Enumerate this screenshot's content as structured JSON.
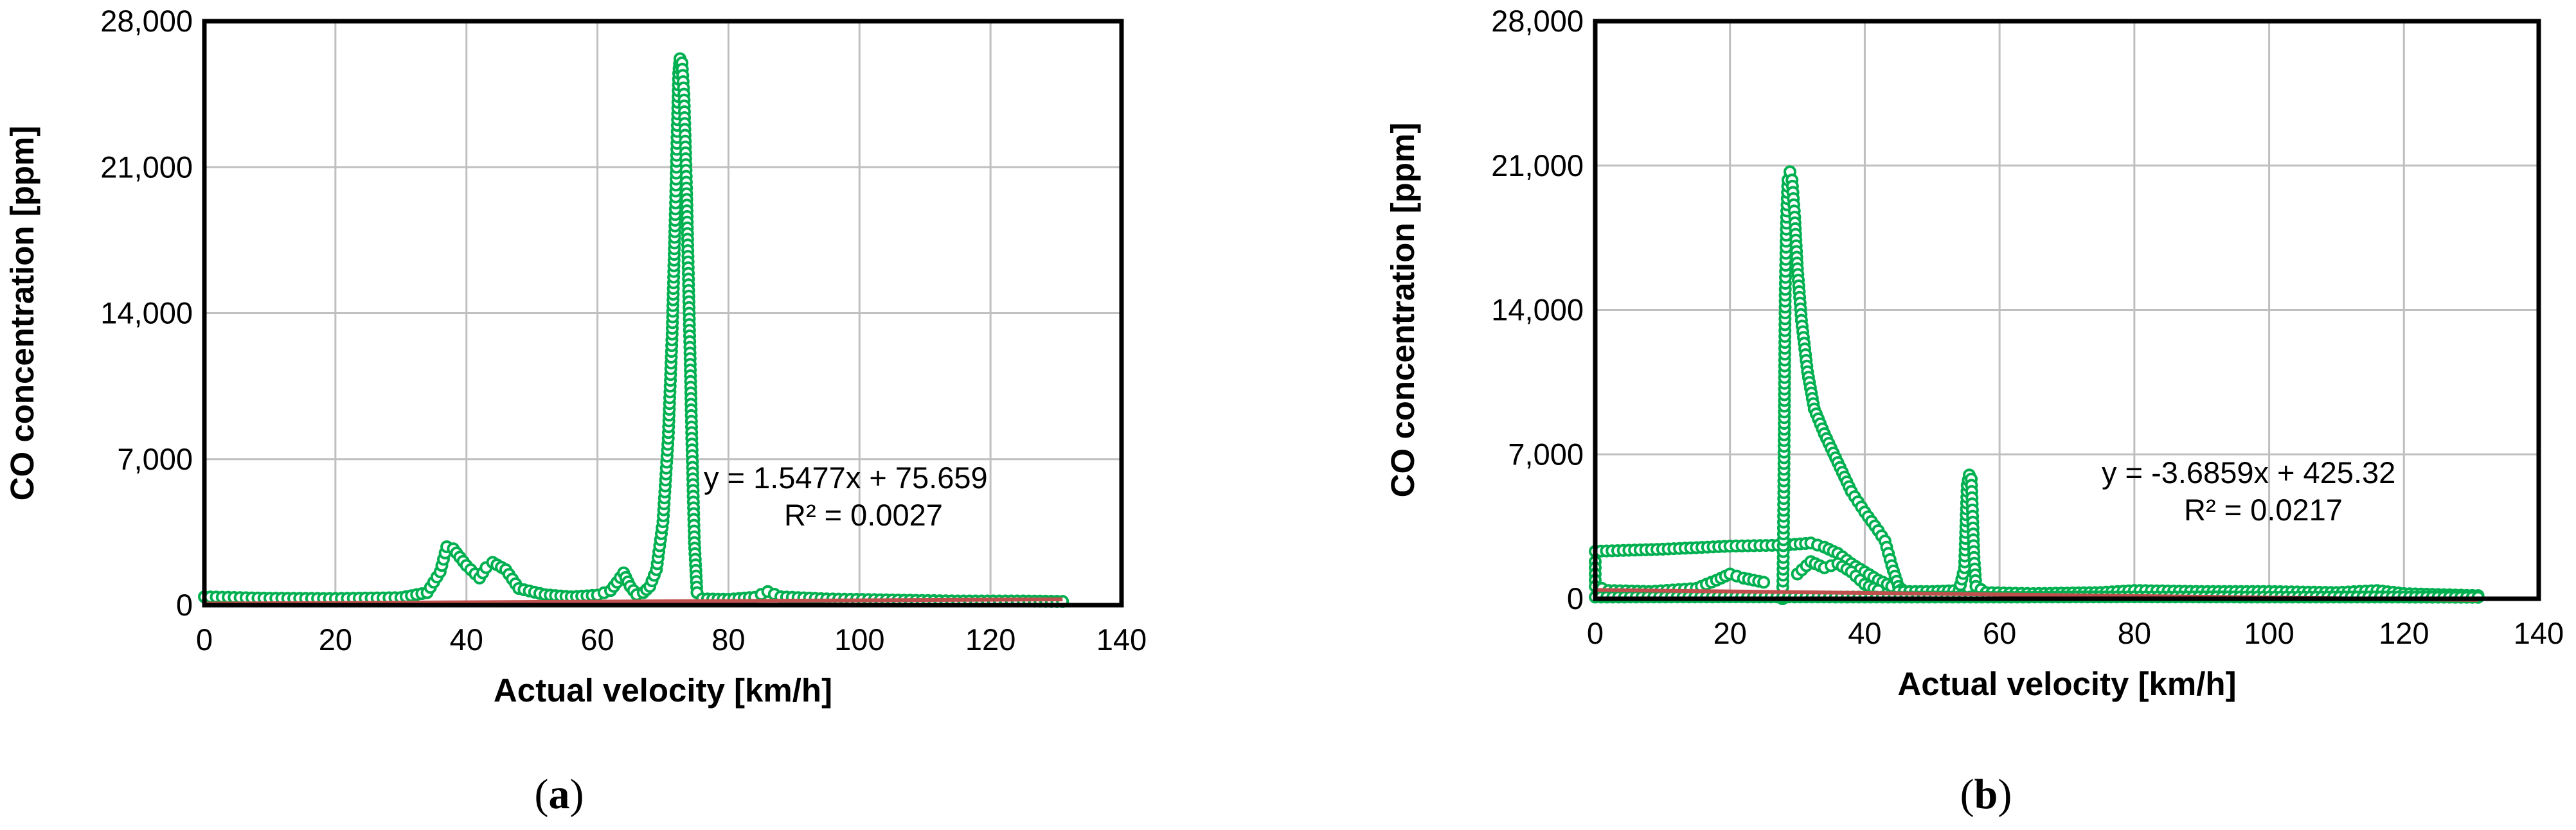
{
  "chart_data": [
    {
      "type": "scatter",
      "panel_label": "a",
      "xlabel": "Actual velocity [km/h]",
      "ylabel": "CO concentration [ppm]",
      "xlim": [
        0,
        140
      ],
      "ylim": [
        0,
        28000
      ],
      "xticks": [
        0,
        20,
        40,
        60,
        80,
        100,
        120,
        140
      ],
      "yticks": [
        0,
        7000,
        14000,
        21000,
        28000
      ],
      "xtick_labels": [
        "0",
        "20",
        "40",
        "60",
        "80",
        "100",
        "120",
        "140"
      ],
      "ytick_labels": [
        "0",
        "7,000",
        "14,000",
        "21,000",
        "28,000"
      ],
      "grid": true,
      "marker_color": "#00B050",
      "trend_color": "#C0504D",
      "trendline": {
        "slope": 1.5477,
        "intercept": 75.659,
        "x_range": [
          0,
          131
        ]
      },
      "equation": "y = 1.5477x + 75.659",
      "r_squared": "R² = 0.0027",
      "curves": [
        [
          [
            0,
            400
          ],
          [
            10,
            330
          ],
          [
            20,
            320
          ],
          [
            30,
            360
          ],
          [
            34,
            600
          ],
          [
            36,
            1600
          ],
          [
            37,
            2800
          ],
          [
            38,
            2700
          ],
          [
            40,
            1900
          ],
          [
            42,
            1300
          ],
          [
            43,
            1800
          ],
          [
            44,
            2050
          ],
          [
            46,
            1700
          ],
          [
            48,
            800
          ],
          [
            52,
            500
          ],
          [
            56,
            400
          ],
          [
            60,
            480
          ],
          [
            62,
            700
          ],
          [
            63,
            1100
          ],
          [
            64,
            1550
          ],
          [
            65,
            900
          ],
          [
            66,
            500
          ],
          [
            67,
            600
          ],
          [
            68,
            900
          ],
          [
            69,
            1700
          ],
          [
            70,
            4000
          ],
          [
            70.8,
            8000
          ],
          [
            71.4,
            13000
          ],
          [
            71.9,
            19000
          ],
          [
            72.2,
            23000
          ],
          [
            72.4,
            25500
          ],
          [
            72.6,
            26200
          ],
          [
            72.9,
            26000
          ],
          [
            73.2,
            24500
          ],
          [
            73.6,
            20000
          ],
          [
            74,
            14000
          ],
          [
            74.4,
            8000
          ],
          [
            74.8,
            3000
          ],
          [
            75.2,
            600
          ],
          [
            76,
            300
          ],
          [
            80,
            280
          ],
          [
            84,
            380
          ],
          [
            86,
            650
          ],
          [
            88,
            400
          ],
          [
            95,
            300
          ],
          [
            105,
            250
          ],
          [
            115,
            200
          ],
          [
            125,
            200
          ],
          [
            131,
            180
          ]
        ]
      ]
    },
    {
      "type": "scatter",
      "panel_label": "b",
      "xlabel": "Actual velocity [km/h]",
      "ylabel": "CO concentration [ppm]",
      "xlim": [
        0,
        140
      ],
      "ylim": [
        0,
        28000
      ],
      "xticks": [
        0,
        20,
        40,
        60,
        80,
        100,
        120,
        140
      ],
      "yticks": [
        0,
        7000,
        14000,
        21000,
        28000
      ],
      "xtick_labels": [
        "0",
        "20",
        "40",
        "60",
        "80",
        "100",
        "120",
        "140"
      ],
      "ytick_labels": [
        "0",
        "7,000",
        "14,000",
        "21,000",
        "28,000"
      ],
      "grid": true,
      "marker_color": "#00B050",
      "trend_color": "#C0504D",
      "trendline": {
        "slope": -3.6859,
        "intercept": 425.32,
        "x_range": [
          0,
          131
        ]
      },
      "equation": "y = -3.6859x + 425.32",
      "r_squared": "R² = 0.0217",
      "curves": [
        [
          [
            0,
            1800
          ],
          [
            0,
            600
          ],
          [
            2,
            400
          ],
          [
            8,
            350
          ],
          [
            15,
            500
          ],
          [
            18,
            900
          ],
          [
            20,
            1200
          ],
          [
            22,
            1000
          ],
          [
            25,
            800
          ]
        ],
        [
          [
            0,
            2300
          ],
          [
            10,
            2400
          ],
          [
            20,
            2550
          ],
          [
            28,
            2600
          ],
          [
            32,
            2700
          ],
          [
            34,
            2500
          ],
          [
            36,
            2200
          ],
          [
            38,
            1700
          ],
          [
            40,
            1300
          ],
          [
            42,
            900
          ],
          [
            44,
            600
          ]
        ],
        [
          [
            27.8,
            0
          ],
          [
            27.9,
            2000
          ],
          [
            28,
            6000
          ],
          [
            28.1,
            11000
          ],
          [
            28.2,
            15000
          ],
          [
            28.4,
            18500
          ],
          [
            28.6,
            20300
          ],
          [
            28.9,
            20700
          ],
          [
            29.2,
            20300
          ],
          [
            29.6,
            18500
          ],
          [
            30,
            16000
          ],
          [
            30.6,
            13500
          ],
          [
            31.5,
            11000
          ],
          [
            32.5,
            9200
          ],
          [
            34,
            8000
          ],
          [
            36,
            6600
          ],
          [
            38,
            5200
          ],
          [
            40,
            4200
          ],
          [
            42,
            3300
          ],
          [
            43,
            2800
          ],
          [
            44,
            1600
          ],
          [
            45,
            600
          ],
          [
            46,
            300
          ]
        ],
        [
          [
            30,
            1200
          ],
          [
            32,
            1800
          ],
          [
            34,
            1500
          ],
          [
            36,
            1700
          ],
          [
            38,
            1300
          ],
          [
            40,
            700
          ],
          [
            42,
            400
          ]
        ],
        [
          [
            45,
            350
          ],
          [
            50,
            350
          ],
          [
            54,
            400
          ],
          [
            54.8,
            1500
          ],
          [
            55,
            3500
          ],
          [
            55.2,
            5500
          ],
          [
            55.5,
            6000
          ],
          [
            55.8,
            5800
          ],
          [
            56,
            4000
          ],
          [
            56.2,
            2000
          ],
          [
            56.5,
            600
          ],
          [
            58,
            300
          ],
          [
            65,
            250
          ],
          [
            75,
            300
          ],
          [
            80,
            400
          ],
          [
            90,
            350
          ],
          [
            100,
            350
          ],
          [
            110,
            300
          ],
          [
            116,
            400
          ],
          [
            120,
            250
          ],
          [
            131,
            150
          ]
        ],
        [
          [
            0,
            80
          ],
          [
            20,
            90
          ],
          [
            40,
            80
          ],
          [
            60,
            80
          ],
          [
            80,
            90
          ],
          [
            100,
            80
          ],
          [
            120,
            80
          ],
          [
            131,
            70
          ]
        ]
      ]
    }
  ]
}
